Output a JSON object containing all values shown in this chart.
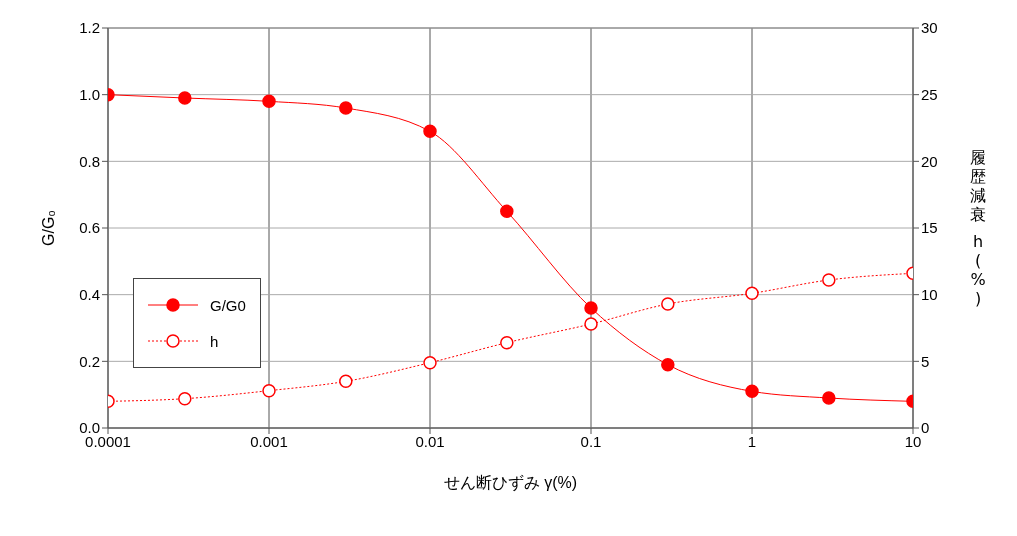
{
  "chart_data": {
    "type": "line",
    "xlabel": "せん断ひずみ γ(%)",
    "ylabel": "G/G₀",
    "y2label": "履歴減衰 h(%)",
    "x": [
      0.0001,
      0.0003,
      0.001,
      0.003,
      0.01,
      0.03,
      0.1,
      0.3,
      1,
      3,
      10
    ],
    "series": [
      {
        "name": "G/G0",
        "color": "#ff0000",
        "line_style": "solid",
        "values": [
          1.0,
          0.99,
          0.98,
          0.96,
          0.89,
          0.65,
          0.36,
          0.19,
          0.11,
          0.09,
          0.08
        ]
      },
      {
        "name": "h",
        "color": "#ff0000",
        "line_style": "dotted",
        "axis": "y2",
        "values": [
          2.0,
          2.2,
          2.8,
          3.5,
          4.9,
          6.4,
          7.8,
          9.3,
          10.1,
          11.1,
          11.6
        ]
      }
    ],
    "log": "x",
    "xlim": [
      0.0001,
      10
    ],
    "xticks": [
      0.0001,
      0.001,
      0.01,
      0.1,
      1,
      10
    ],
    "ylim": [
      0,
      1.2
    ],
    "yticks": [
      {
        "value": 0,
        "label": "0.0"
      },
      {
        "value": 0.2,
        "label": "0.2"
      },
      {
        "value": 0.4,
        "label": "0.4"
      },
      {
        "value": 0.6,
        "label": "0.6"
      },
      {
        "value": 0.8,
        "label": "0.8"
      },
      {
        "value": 1.0,
        "label": "1.0"
      },
      {
        "value": 1.2,
        "label": "1.2"
      }
    ],
    "y2lim": [
      0,
      30
    ],
    "y2ticks": [
      0,
      5,
      10,
      15,
      20,
      25,
      30
    ],
    "grid": true,
    "legend": "left",
    "marker": "circle"
  }
}
